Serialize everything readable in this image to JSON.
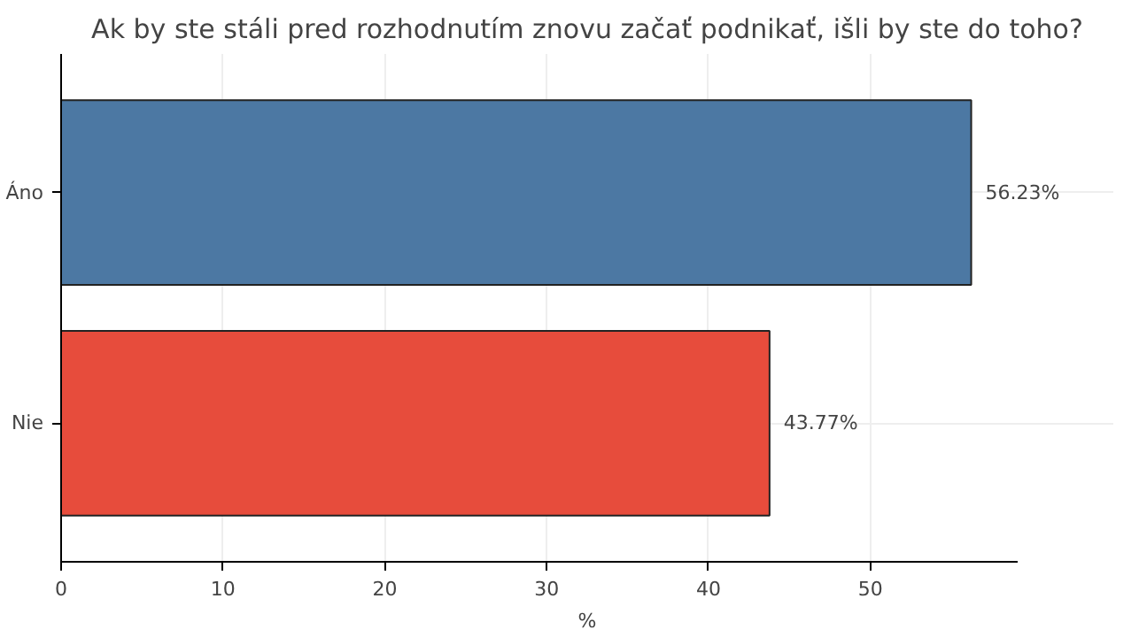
{
  "chart_data": {
    "type": "bar",
    "orientation": "horizontal",
    "title": "Ak by ste stáli pred rozhodnutím znovu začať podnikať, išli by ste do toho?",
    "xlabel": "%",
    "categories": [
      "Áno",
      "Nie"
    ],
    "values": [
      56.23,
      43.77
    ],
    "colors": [
      "#4c78a3",
      "#e74c3c"
    ],
    "value_labels": [
      "56.23%",
      "43.77%"
    ],
    "xlim": [
      0,
      59.1
    ],
    "xticks": [
      0,
      10,
      20,
      30,
      40,
      50
    ],
    "grid": true
  }
}
